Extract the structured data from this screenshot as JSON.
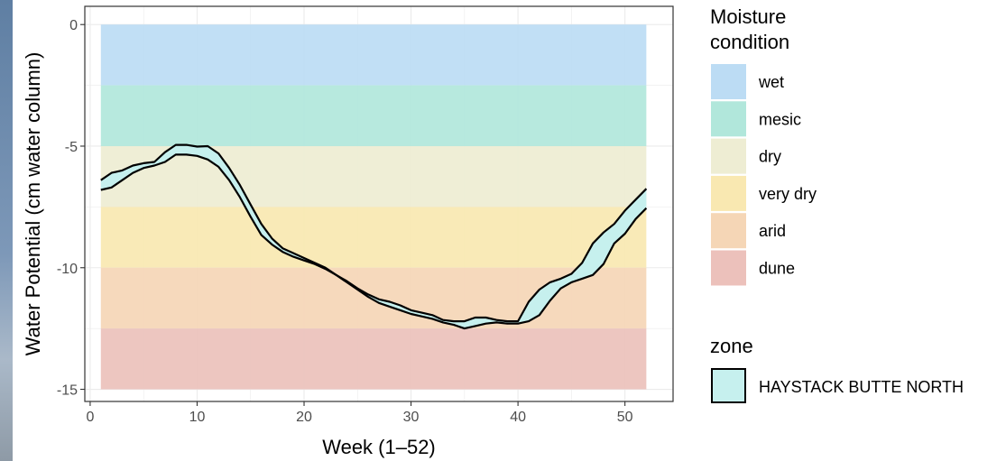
{
  "chart_data": {
    "type": "area",
    "title": "",
    "xlabel": "Week (1–52)",
    "ylabel": "Water Potential (cm water column)",
    "xlim": [
      -0.5,
      54.5
    ],
    "ylim": [
      -15.5,
      0.75
    ],
    "x_ticks": [
      0,
      10,
      20,
      30,
      40,
      50
    ],
    "y_ticks": [
      0,
      -5,
      -10,
      -15
    ],
    "x_tick_labels": [
      "0",
      "10",
      "20",
      "30",
      "40",
      "50"
    ],
    "y_tick_labels": [
      "0",
      "-5",
      "-10",
      "-15"
    ],
    "grid": true,
    "bands": {
      "legend_title": "Moisture condition",
      "x_range": [
        1,
        52
      ],
      "items": [
        {
          "label": "wet",
          "ymin": -2.5,
          "ymax": 0,
          "color": "#bcdcf4"
        },
        {
          "label": "mesic",
          "ymin": -5,
          "ymax": -2.5,
          "color": "#b1e7db"
        },
        {
          "label": "dry",
          "ymin": -7.5,
          "ymax": -5,
          "color": "#eeedd3"
        },
        {
          "label": "very dry",
          "ymin": -10,
          "ymax": -7.5,
          "color": "#f9e8b1"
        },
        {
          "label": "arid",
          "ymin": -12.5,
          "ymax": -10,
          "color": "#f5d6b6"
        },
        {
          "label": "dune",
          "ymin": -15,
          "ymax": -12.5,
          "color": "#ecc1bb"
        }
      ]
    },
    "series": [
      {
        "name": "HAYSTACK BUTTE NORTH",
        "color": "#c6f0ee",
        "x": [
          1,
          2,
          3,
          4,
          5,
          6,
          7,
          8,
          9,
          10,
          11,
          12,
          13,
          14,
          15,
          16,
          17,
          18,
          19,
          20,
          21,
          22,
          23,
          24,
          25,
          26,
          27,
          28,
          29,
          30,
          31,
          32,
          33,
          34,
          35,
          36,
          37,
          38,
          39,
          40,
          41,
          42,
          43,
          44,
          45,
          46,
          47,
          48,
          49,
          50,
          51,
          52
        ],
        "upper": [
          -6.4,
          -6.1,
          -6.0,
          -5.8,
          -5.7,
          -5.65,
          -5.25,
          -4.95,
          -4.95,
          -5.02,
          -5.0,
          -5.3,
          -5.9,
          -6.6,
          -7.4,
          -8.2,
          -8.8,
          -9.2,
          -9.4,
          -9.6,
          -9.8,
          -10.0,
          -10.3,
          -10.55,
          -10.85,
          -11.1,
          -11.3,
          -11.4,
          -11.55,
          -11.75,
          -11.85,
          -11.95,
          -12.15,
          -12.2,
          -12.2,
          -12.05,
          -12.05,
          -12.15,
          -12.2,
          -12.2,
          -11.4,
          -10.9,
          -10.6,
          -10.45,
          -10.25,
          -9.8,
          -9.0,
          -8.55,
          -8.2,
          -7.65,
          -7.2,
          -6.75
        ],
        "lower": [
          -6.8,
          -6.7,
          -6.4,
          -6.1,
          -5.9,
          -5.8,
          -5.65,
          -5.35,
          -5.35,
          -5.4,
          -5.55,
          -5.85,
          -6.4,
          -7.1,
          -7.9,
          -8.65,
          -9.05,
          -9.35,
          -9.55,
          -9.7,
          -9.85,
          -10.05,
          -10.3,
          -10.6,
          -10.9,
          -11.2,
          -11.45,
          -11.6,
          -11.75,
          -11.9,
          -12.0,
          -12.1,
          -12.25,
          -12.35,
          -12.5,
          -12.4,
          -12.3,
          -12.25,
          -12.3,
          -12.3,
          -12.2,
          -11.95,
          -11.35,
          -10.85,
          -10.6,
          -10.45,
          -10.3,
          -9.85,
          -9.0,
          -8.6,
          -8.0,
          -7.55
        ]
      }
    ],
    "series_legend_title": "zone"
  }
}
